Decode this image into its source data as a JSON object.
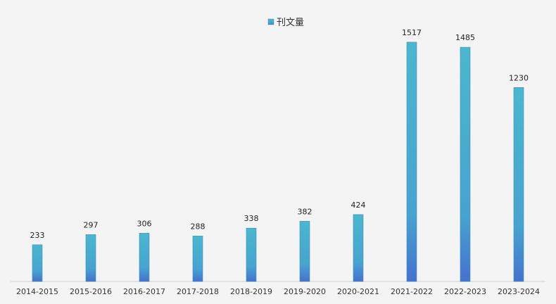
{
  "chart_data": {
    "type": "bar",
    "title": "",
    "xlabel": "",
    "ylabel": "",
    "legend_position": "top-center",
    "grid": false,
    "ylim": [
      0,
      1530
    ],
    "categories": [
      "2014-2015",
      "2015-2016",
      "2016-2017",
      "2017-2018",
      "2018-2019",
      "2019-2020",
      "2020-2021",
      "2021-2022",
      "2022-2023",
      "2023-2024"
    ],
    "series": [
      {
        "name": "刊文量",
        "values": [
          233,
          297,
          306,
          288,
          338,
          382,
          424,
          1517,
          1485,
          1230
        ]
      }
    ],
    "colors": {
      "bar_top": "#4ab7cf",
      "bar_bottom": "#4572cf",
      "axis_line": "#d0d0d0"
    }
  }
}
